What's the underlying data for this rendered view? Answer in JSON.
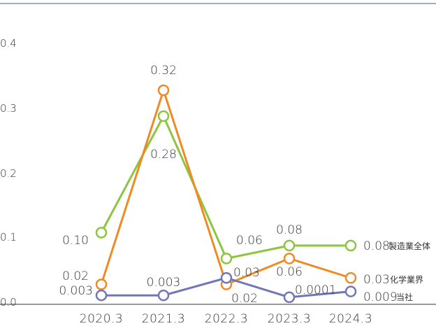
{
  "chart_data": {
    "type": "line",
    "categories": [
      "2020.3",
      "2021.3",
      "2022.3",
      "2023.3",
      "2024.3"
    ],
    "ylim": [
      0,
      0.4
    ],
    "yticks": [
      "0.0",
      "0.1",
      "0.2",
      "0.3",
      "0.4"
    ],
    "grid": false,
    "series": [
      {
        "name": "製造業全体",
        "color": "#8cc63f",
        "values": [
          0.1,
          0.28,
          0.06,
          0.08,
          0.08
        ],
        "labels": [
          "0.10",
          "0.28",
          "0.06",
          "0.08",
          "0.08"
        ]
      },
      {
        "name": "化学業界",
        "color": "#f08a24",
        "values": [
          0.02,
          0.32,
          0.02,
          0.06,
          0.03
        ],
        "labels": [
          "0.02",
          "0.32",
          "0.02",
          "0.06",
          "0.03"
        ]
      },
      {
        "name": "当社",
        "color": "#7076b8",
        "values": [
          0.003,
          0.003,
          0.03,
          0.0001,
          0.009
        ],
        "labels": [
          "0.003",
          "0.003",
          "0.03",
          "0.0001",
          "0.009"
        ]
      }
    ]
  }
}
